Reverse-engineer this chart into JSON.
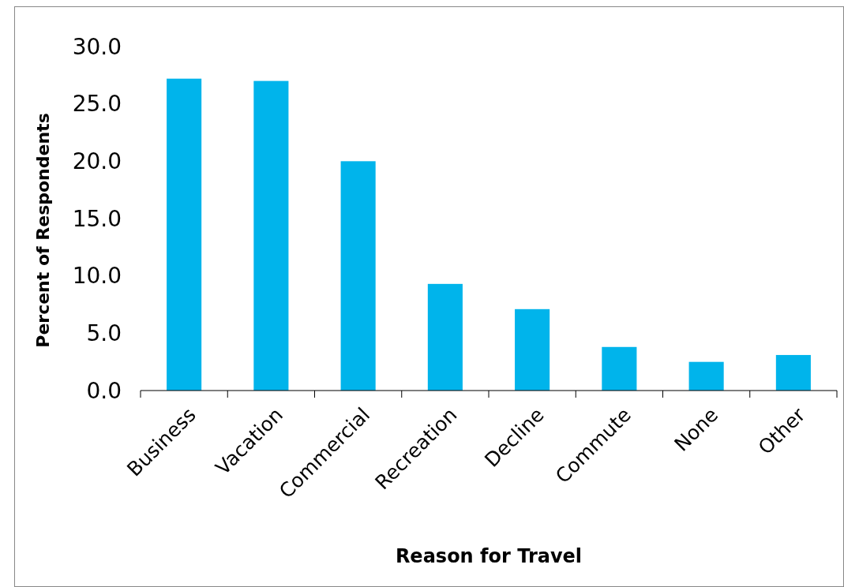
{
  "chart_data": {
    "type": "bar",
    "xlabel": "Reason for Travel",
    "ylabel": "Percent of Respondents",
    "categories": [
      "Business",
      "Vacation",
      "Commercial",
      "Recreation",
      "Decline",
      "Commute",
      "None",
      "Other"
    ],
    "values": [
      27.2,
      27.0,
      20.0,
      9.3,
      7.1,
      3.8,
      2.5,
      3.1
    ],
    "color": "#00b4eb",
    "ylim": [
      0,
      30
    ],
    "yticks": [
      {
        "value": 0,
        "label": "0.0"
      },
      {
        "value": 5,
        "label": "5.0"
      },
      {
        "value": 10,
        "label": "10.0"
      },
      {
        "value": 15,
        "label": "15.0"
      },
      {
        "value": 20,
        "label": "20.0"
      },
      {
        "value": 25,
        "label": "25.0"
      },
      {
        "value": 30,
        "label": "30.0"
      }
    ],
    "grid": false
  }
}
